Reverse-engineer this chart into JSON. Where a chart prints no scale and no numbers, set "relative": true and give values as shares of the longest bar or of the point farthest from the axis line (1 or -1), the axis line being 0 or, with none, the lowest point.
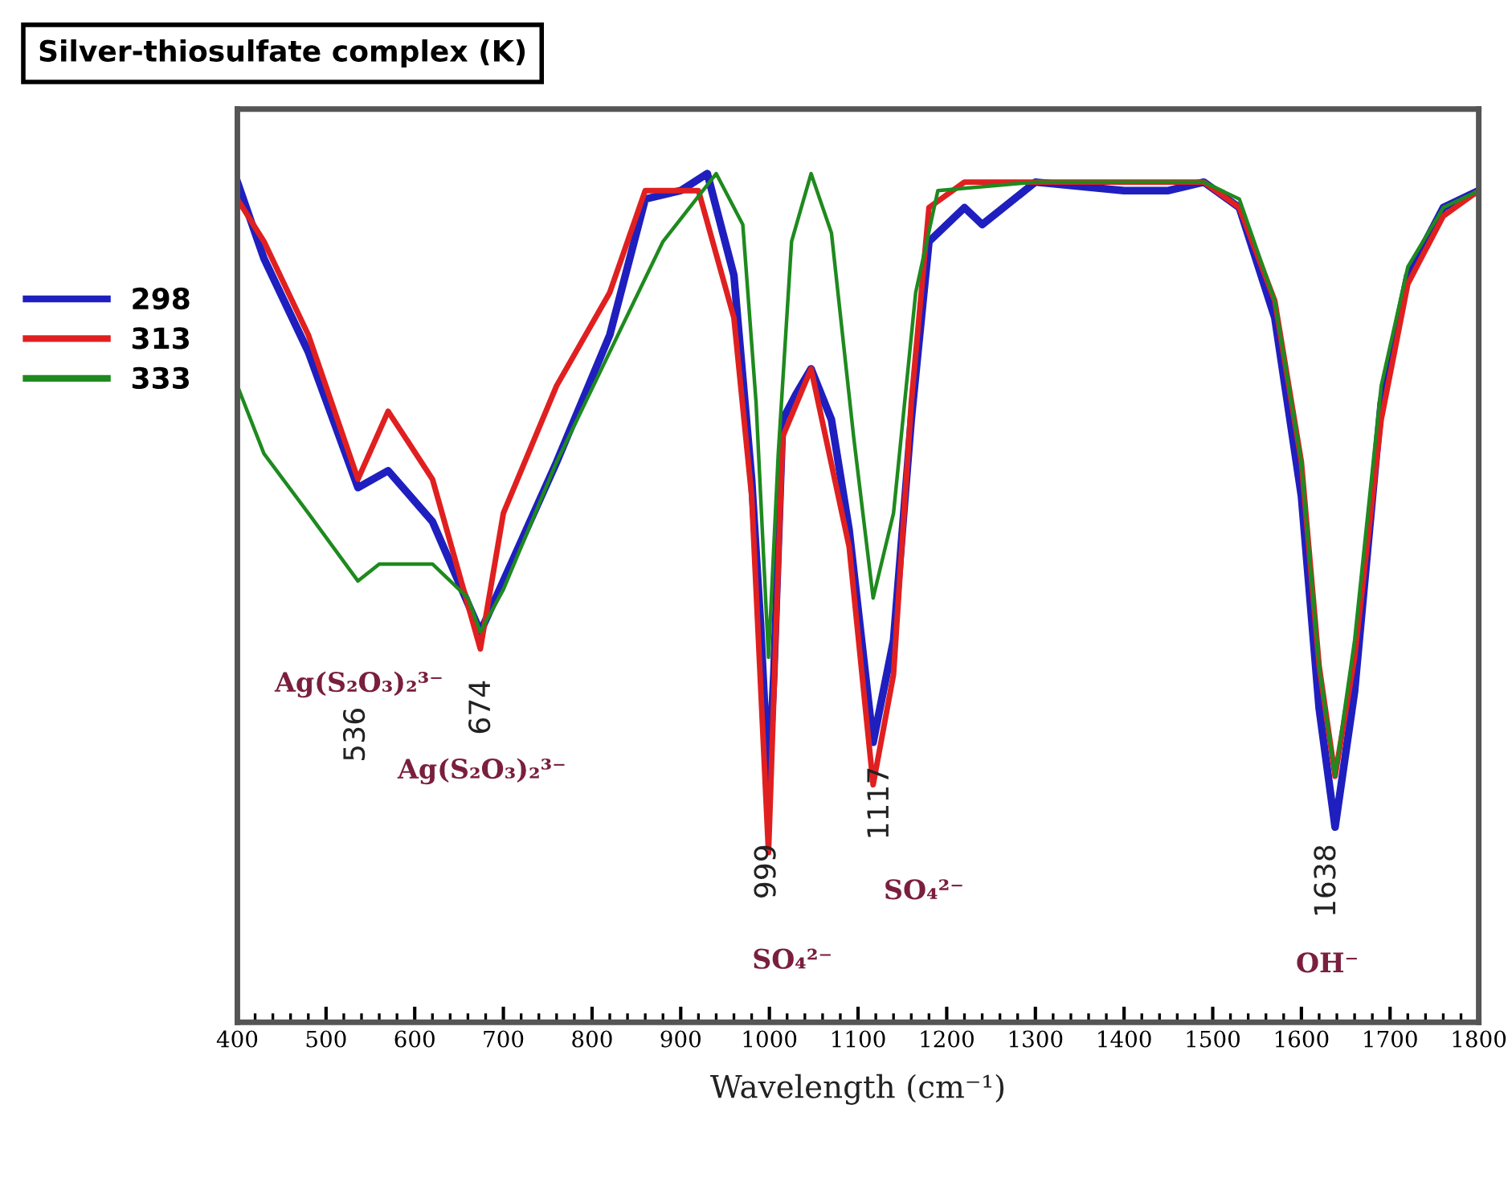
{
  "chart_data": {
    "type": "line",
    "title": "Silver-thiosulfate complex (K)",
    "xlabel": "Wavelength (cm⁻¹)",
    "relative": true,
    "xlim": [
      400,
      1800
    ],
    "xticks": [
      400,
      500,
      600,
      700,
      800,
      900,
      1000,
      1100,
      1200,
      1300,
      1400,
      1500,
      1600,
      1700,
      1800
    ],
    "legend": "left",
    "grid": false,
    "marker": "none",
    "line_style": "solid",
    "series": [
      {
        "name": "298",
        "color": "#1f1fbf",
        "x": [
          400,
          430,
          480,
          536,
          570,
          620,
          674,
          700,
          760,
          820,
          860,
          900,
          930,
          960,
          980,
          990,
          999,
          1005,
          1015,
          1030,
          1047,
          1070,
          1090,
          1117,
          1140,
          1160,
          1180,
          1220,
          1240,
          1300,
          1400,
          1450,
          1490,
          1530,
          1570,
          1600,
          1620,
          1638,
          1660,
          1690,
          1720,
          1760,
          1800
        ],
        "values": [
          0.99,
          0.9,
          0.79,
          0.63,
          0.65,
          0.59,
          0.46,
          0.52,
          0.66,
          0.81,
          0.97,
          0.98,
          1.0,
          0.88,
          0.64,
          0.47,
          0.28,
          0.41,
          0.71,
          0.74,
          0.77,
          0.71,
          0.58,
          0.33,
          0.45,
          0.71,
          0.92,
          0.96,
          0.94,
          0.99,
          0.98,
          0.98,
          0.99,
          0.96,
          0.83,
          0.62,
          0.37,
          0.23,
          0.39,
          0.73,
          0.88,
          0.96,
          0.98
        ]
      },
      {
        "name": "313",
        "color": "#e02020",
        "x": [
          400,
          430,
          480,
          536,
          570,
          620,
          674,
          700,
          760,
          820,
          860,
          920,
          960,
          980,
          999,
          1015,
          1047,
          1090,
          1117,
          1140,
          1160,
          1180,
          1220,
          1300,
          1400,
          1490,
          1530,
          1570,
          1600,
          1620,
          1638,
          1660,
          1690,
          1720,
          1760,
          1800
        ],
        "values": [
          0.97,
          0.92,
          0.81,
          0.64,
          0.72,
          0.64,
          0.44,
          0.6,
          0.75,
          0.86,
          0.98,
          0.98,
          0.83,
          0.62,
          0.2,
          0.69,
          0.77,
          0.56,
          0.28,
          0.41,
          0.73,
          0.96,
          0.99,
          0.99,
          0.99,
          0.99,
          0.96,
          0.85,
          0.66,
          0.42,
          0.29,
          0.43,
          0.71,
          0.87,
          0.95,
          0.98
        ]
      },
      {
        "name": "333",
        "color": "#1e8a1e",
        "x": [
          400,
          430,
          480,
          536,
          560,
          620,
          660,
          674,
          700,
          760,
          820,
          880,
          940,
          970,
          985,
          999,
          1010,
          1025,
          1047,
          1070,
          1095,
          1117,
          1140,
          1165,
          1190,
          1300,
          1490,
          1530,
          1570,
          1600,
          1620,
          1638,
          1660,
          1690,
          1720,
          1760,
          1800
        ],
        "values": [
          0.75,
          0.67,
          0.6,
          0.52,
          0.54,
          0.54,
          0.5,
          0.46,
          0.51,
          0.66,
          0.79,
          0.92,
          1.0,
          0.94,
          0.73,
          0.43,
          0.67,
          0.92,
          1.0,
          0.93,
          0.69,
          0.5,
          0.6,
          0.86,
          0.98,
          0.99,
          0.99,
          0.97,
          0.85,
          0.66,
          0.42,
          0.29,
          0.45,
          0.75,
          0.89,
          0.96,
          0.98
        ]
      }
    ],
    "annotations": [
      "536",
      "Ag(S₂O₃)₂³⁻",
      "674",
      "Ag(S₂O₃)₂³⁻",
      "999",
      "SO₄²⁻",
      "1117",
      "SO₄²⁻",
      "1638",
      "OH⁻"
    ]
  }
}
